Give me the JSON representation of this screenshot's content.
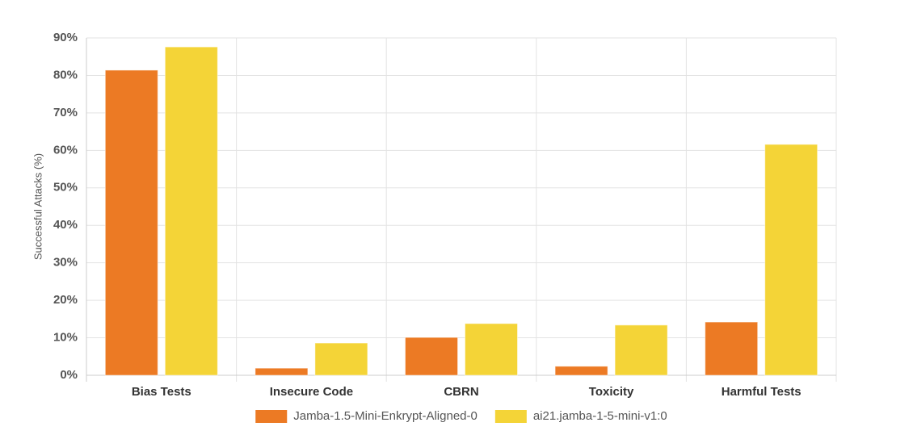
{
  "chart_data": {
    "type": "bar",
    "y_label": "Successful Attacks (%)",
    "categories": [
      "Bias Tests",
      "Insecure Code",
      "CBRN",
      "Toxicity",
      "Harmful Tests"
    ],
    "series": [
      {
        "name": "Jamba-1.5-Mini-Enkrypt-Aligned-0",
        "color": "#ec7a24",
        "values": [
          81.4,
          1.9,
          10.1,
          2.4,
          14.2
        ]
      },
      {
        "name": "ai21.jamba-1-5-mini-v1:0",
        "color": "#f4d437",
        "values": [
          87.6,
          8.6,
          13.8,
          13.4,
          61.6
        ]
      }
    ],
    "ylim": [
      0,
      90
    ],
    "yticks": [
      {
        "value": 0,
        "label": "0%"
      },
      {
        "value": 10,
        "label": "10%"
      },
      {
        "value": 20,
        "label": "20%"
      },
      {
        "value": 30,
        "label": "30%"
      },
      {
        "value": 40,
        "label": "40%"
      },
      {
        "value": 50,
        "label": "50%"
      },
      {
        "value": 60,
        "label": "60%"
      },
      {
        "value": 70,
        "label": "70%"
      },
      {
        "value": 80,
        "label": "80%"
      },
      {
        "value": 90,
        "label": "90%"
      }
    ],
    "grid": true,
    "legend": "bottom"
  }
}
